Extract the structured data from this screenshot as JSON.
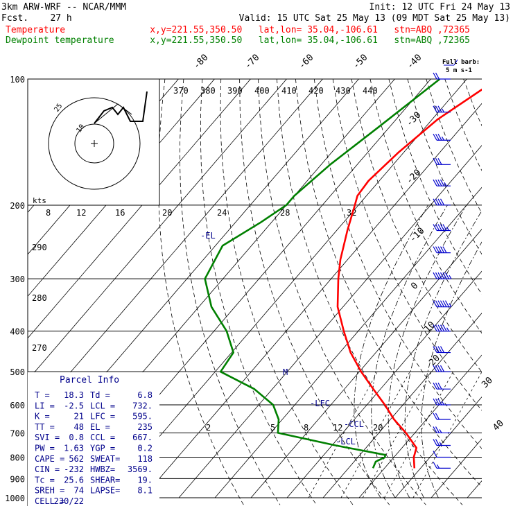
{
  "header": {
    "model": "3km ARW-WRF -- NCAR/MMM",
    "fcst": "Fcst.    27 h",
    "init": "Init: 12 UTC Fri 24 May 13",
    "valid": "Valid: 15 UTC Sat 25 May 13 (09 MDT Sat 25 May 13)",
    "temp_label": "Temperature",
    "temp_info": "x,y=221.55,350.50   lat,lon= 35.04,-106.61   stn=ABQ ,72365",
    "dew_label": "Dewpoint temperature",
    "dew_info": "x,y=221.55,350.50   lat,lon= 35.04,-106.61   stn=ABQ ,72365"
  },
  "colors": {
    "temperature": "#ff0000",
    "dewpoint": "#008000",
    "annotation": "#00008b",
    "barb": "#0000cd"
  },
  "barb_legend": {
    "line1": "Full barb:",
    "line2": "5 m s-1"
  },
  "hodograph": {
    "units_label": "kts",
    "ring_labels": [
      "25",
      "10"
    ]
  },
  "parcel_info": {
    "title": "Parcel Info",
    "rows": [
      [
        "T  =",
        "18.3",
        "Td =",
        "6.8"
      ],
      [
        "LI =",
        "-2.5",
        "LCL =",
        "732."
      ],
      [
        "K  =",
        "21",
        "LFC =",
        "595."
      ],
      [
        "TT =",
        "48",
        "EL =",
        "235"
      ],
      [
        "SVI =",
        "0.8",
        "CCL =",
        "667."
      ],
      [
        "PW =",
        "1.63",
        "YGP =",
        "0.2"
      ],
      [
        "CAPE =",
        "562",
        "SWEAT=",
        "118"
      ],
      [
        "CIN =",
        "-232",
        "HWBZ=",
        "3569."
      ],
      [
        "Tc =",
        "25.6",
        "SHEAR=",
        "19."
      ],
      [
        "SREH =",
        "74",
        "LAPSE=",
        "8.1"
      ],
      [
        "CELL =",
        "230/22",
        "",
        ""
      ]
    ]
  },
  "levels": {
    "el": "-EL",
    "lfc": "-LFC",
    "ccl": "-CCL",
    "lcl": "-LCL",
    "m": "M"
  },
  "chart_data": {
    "type": "line",
    "title": "",
    "ylabel": "",
    "xlabel": "",
    "y_scale": "log (pressure, hPa)",
    "pressure_ticks": [
      100,
      200,
      300,
      400,
      500,
      600,
      700,
      800,
      900,
      1000
    ],
    "isotherm_labels_top": [
      "-80",
      "-70",
      "-60",
      "-50",
      "-40"
    ],
    "isotherm_labels_right": [
      "-30",
      "-20",
      "-10",
      "0",
      "10",
      "20",
      "30",
      "40"
    ],
    "theta_labels_top": [
      "370",
      "380",
      "390",
      "400",
      "410",
      "420",
      "430",
      "440"
    ],
    "mixing_ratio_labels_upper": [
      "8",
      "12",
      "16",
      "20",
      "24",
      "28",
      "32"
    ],
    "mixing_ratio_labels_lower": [
      "2",
      "5",
      "8",
      "12",
      "20"
    ],
    "theta_labels_left": [
      "290",
      "280",
      "270"
    ],
    "series": [
      {
        "name": "Temperature",
        "points": [
          [
            100,
            -51.5
          ],
          [
            125,
            -58.5
          ],
          [
            150,
            -61.5
          ],
          [
            175,
            -63
          ],
          [
            190,
            -62.5
          ],
          [
            200,
            -61
          ],
          [
            230,
            -57
          ],
          [
            270,
            -52
          ],
          [
            300,
            -48
          ],
          [
            350,
            -41.5
          ],
          [
            400,
            -34
          ],
          [
            450,
            -27
          ],
          [
            500,
            -19.5
          ],
          [
            550,
            -12
          ],
          [
            600,
            -5
          ],
          [
            650,
            1
          ],
          [
            700,
            7.5
          ],
          [
            760,
            14
          ],
          [
            800,
            15.5
          ],
          [
            850,
            18.3
          ]
        ]
      },
      {
        "name": "Dewpoint temperature",
        "points": [
          [
            100,
            -67.5
          ],
          [
            130,
            -73
          ],
          [
            160,
            -77.5
          ],
          [
            190,
            -80
          ],
          [
            200,
            -80
          ],
          [
            220,
            -83
          ],
          [
            250,
            -88
          ],
          [
            300,
            -85
          ],
          [
            350,
            -76.5
          ],
          [
            400,
            -66.5
          ],
          [
            450,
            -59.5
          ],
          [
            500,
            -58.5
          ],
          [
            550,
            -45
          ],
          [
            600,
            -36
          ],
          [
            650,
            -31
          ],
          [
            700,
            -28
          ],
          [
            750,
            -9
          ],
          [
            790,
            7
          ],
          [
            800,
            7.5
          ],
          [
            820,
            6
          ],
          [
            850,
            6.8
          ]
        ]
      }
    ],
    "wind_profile_knots": [
      [
        100,
        20
      ],
      [
        120,
        25
      ],
      [
        140,
        28
      ],
      [
        160,
        30
      ],
      [
        180,
        35
      ],
      [
        200,
        40
      ],
      [
        230,
        45
      ],
      [
        260,
        50
      ],
      [
        300,
        55
      ],
      [
        350,
        55
      ],
      [
        400,
        45
      ],
      [
        450,
        40
      ],
      [
        500,
        40
      ],
      [
        550,
        30
      ],
      [
        600,
        25
      ],
      [
        650,
        20
      ],
      [
        700,
        15
      ],
      [
        750,
        15
      ],
      [
        800,
        10
      ],
      [
        850,
        5
      ]
    ]
  }
}
